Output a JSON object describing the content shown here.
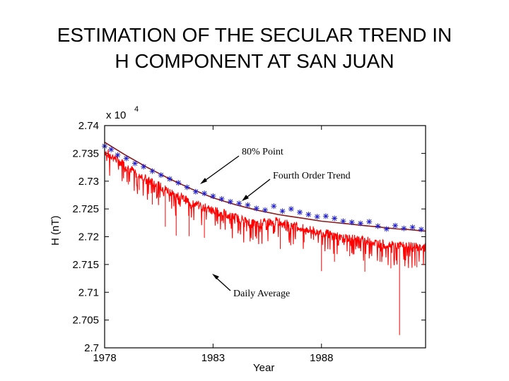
{
  "page": {
    "title_line1": "ESTIMATION OF THE SECULAR TREND IN",
    "title_line2": "H COMPONENT AT SAN JUAN"
  },
  "chart_data": {
    "type": "line",
    "xlabel": "Year",
    "ylabel": "H (nT)",
    "y_multiplier_label": "x 10",
    "y_multiplier_exp": "4",
    "xlim": [
      1978,
      1992.8
    ],
    "ylim": [
      2.7,
      2.74
    ],
    "x_ticks": [
      1978,
      1983,
      1988
    ],
    "y_ticks": [
      "2.74",
      "2.735",
      "2.73",
      "2.725",
      "2.72",
      "2.715",
      "2.71",
      "2.705",
      "2.7"
    ],
    "grid": false,
    "annotations": {
      "point80": "80% Point",
      "fourth": "Fourth Order Trend",
      "daily": "Daily Average"
    },
    "colors": {
      "daily": "#ff0000",
      "points80": "#2020cc",
      "trend": "#8b1a1a"
    },
    "series": [
      {
        "key": "daily",
        "style": "red-line",
        "x": [
          1978.0,
          1979.0,
          1980.0,
          1981.0,
          1982.0,
          1983.0,
          1984.0,
          1985.0,
          1986.0,
          1987.0,
          1988.0,
          1989.0,
          1990.0,
          1991.0,
          1992.0,
          1992.8
        ],
        "y": [
          2.7364,
          2.7337,
          2.7311,
          2.7292,
          2.7271,
          2.7258,
          2.7245,
          2.7233,
          2.7238,
          2.7226,
          2.7218,
          2.7208,
          2.7203,
          2.7195,
          2.7193,
          2.719
        ],
        "dips": [
          [
            1978.4,
            2.7335
          ],
          [
            1979.1,
            2.7294
          ],
          [
            1979.6,
            2.7284
          ],
          [
            1980.2,
            2.7258
          ],
          [
            1980.8,
            2.7218
          ],
          [
            1981.3,
            2.7202
          ],
          [
            1981.9,
            2.7201
          ],
          [
            1982.6,
            2.7198
          ],
          [
            1983.4,
            2.7228
          ],
          [
            1984.2,
            2.7211
          ],
          [
            1985.0,
            2.7215
          ],
          [
            1986.1,
            2.7178
          ],
          [
            1986.5,
            2.7194
          ],
          [
            1987.2,
            2.719
          ],
          [
            1988.0,
            2.7138
          ],
          [
            1988.6,
            2.7155
          ],
          [
            1989.3,
            2.7165
          ],
          [
            1990.0,
            2.7137
          ],
          [
            1990.7,
            2.7155
          ],
          [
            1991.2,
            2.7143
          ],
          [
            1991.6,
            2.7023
          ],
          [
            1992.0,
            2.7152
          ],
          [
            1992.4,
            2.7145
          ]
        ]
      },
      {
        "key": "points80",
        "style": "blue-stars",
        "x": [
          1978.0,
          1978.3,
          1978.6,
          1979.0,
          1979.4,
          1979.8,
          1980.2,
          1980.6,
          1981.0,
          1981.4,
          1981.8,
          1982.2,
          1982.6,
          1983.0,
          1983.4,
          1983.8,
          1984.2,
          1984.6,
          1985.0,
          1985.4,
          1985.8,
          1986.2,
          1986.6,
          1987.0,
          1987.4,
          1987.8,
          1988.2,
          1988.6,
          1989.0,
          1989.4,
          1989.8,
          1990.2,
          1990.6,
          1991.0,
          1991.4,
          1991.8,
          1992.2,
          1992.6
        ],
        "y": [
          2.7363,
          2.7357,
          2.7347,
          2.7341,
          2.7332,
          2.7326,
          2.7318,
          2.7311,
          2.7304,
          2.7297,
          2.7289,
          2.7281,
          2.7278,
          2.7273,
          2.7268,
          2.7263,
          2.726,
          2.7257,
          2.7251,
          2.7248,
          2.7255,
          2.7246,
          2.725,
          2.7244,
          2.724,
          2.7236,
          2.7237,
          2.7233,
          2.7228,
          2.7226,
          2.7224,
          2.7227,
          2.7219,
          2.7214,
          2.722,
          2.7215,
          2.7217,
          2.7213
        ]
      },
      {
        "key": "trend",
        "style": "dark-red-line",
        "x": [
          1978.0,
          1978.5,
          1979.0,
          1979.5,
          1980.0,
          1980.5,
          1981.0,
          1981.5,
          1982.0,
          1982.5,
          1983.0,
          1983.5,
          1984.0,
          1984.5,
          1985.0,
          1985.5,
          1986.0,
          1986.5,
          1987.0,
          1987.5,
          1988.0,
          1988.5,
          1989.0,
          1989.5,
          1990.0,
          1990.5,
          1991.0,
          1991.5,
          1992.0,
          1992.5,
          1992.8
        ],
        "y": [
          2.737,
          2.7358,
          2.7346,
          2.7335,
          2.7324,
          2.7314,
          2.7304,
          2.7295,
          2.7286,
          2.7278,
          2.727,
          2.7264,
          2.7258,
          2.7253,
          2.7248,
          2.7244,
          2.724,
          2.7237,
          2.7234,
          2.7231,
          2.7228,
          2.7226,
          2.7224,
          2.7222,
          2.722,
          2.7218,
          2.7216,
          2.7214,
          2.7213,
          2.7211,
          2.721
        ]
      }
    ]
  }
}
